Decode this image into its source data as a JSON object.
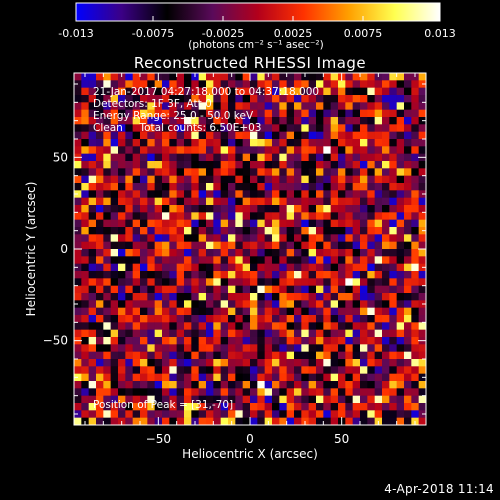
{
  "colorbar": {
    "tick_labels": [
      "-0.013",
      "-0.0075",
      "-0.0025",
      "0.0025",
      "0.0075",
      "0.013"
    ],
    "units_label": "(photons cm⁻² s⁻¹ asec⁻²)",
    "range": [
      -0.013,
      0.013
    ],
    "colors": [
      "#0000ff",
      "#3b0086",
      "#000000",
      "#5a0a5a",
      "#b3001b",
      "#ff3200",
      "#ffa000",
      "#ffff50",
      "#ffffff"
    ]
  },
  "chart_data": {
    "type": "heatmap",
    "title": "Reconstructed RHESSI Image",
    "xlabel": "Heliocentric X (arcsec)",
    "ylabel": "Heliocentric Y (arcsec)",
    "xlim": [
      -96,
      96
    ],
    "ylim": [
      -96,
      96
    ],
    "x_ticks": [
      -50,
      0,
      50
    ],
    "y_ticks": [
      -50,
      0,
      50
    ],
    "x_tick_labels": [
      "−50",
      "0",
      "50"
    ],
    "y_tick_labels": [
      "−50",
      "0",
      "50"
    ],
    "grid": false,
    "pixel_size_arcsec": 4,
    "peak_position": [
      31,
      -70
    ],
    "annotations": [
      "21-Jan-2017 04:27:18.000 to 04:37:18.000",
      "Detectors: 1F 3F, Att 0",
      "Energy Range: 25.0 - 50.0 keV",
      "Clean     Total counts: 6.50E+03",
      "Position of Peak = [31,-70]"
    ]
  },
  "footer": {
    "timestamp": "4-Apr-2018 11:14"
  }
}
